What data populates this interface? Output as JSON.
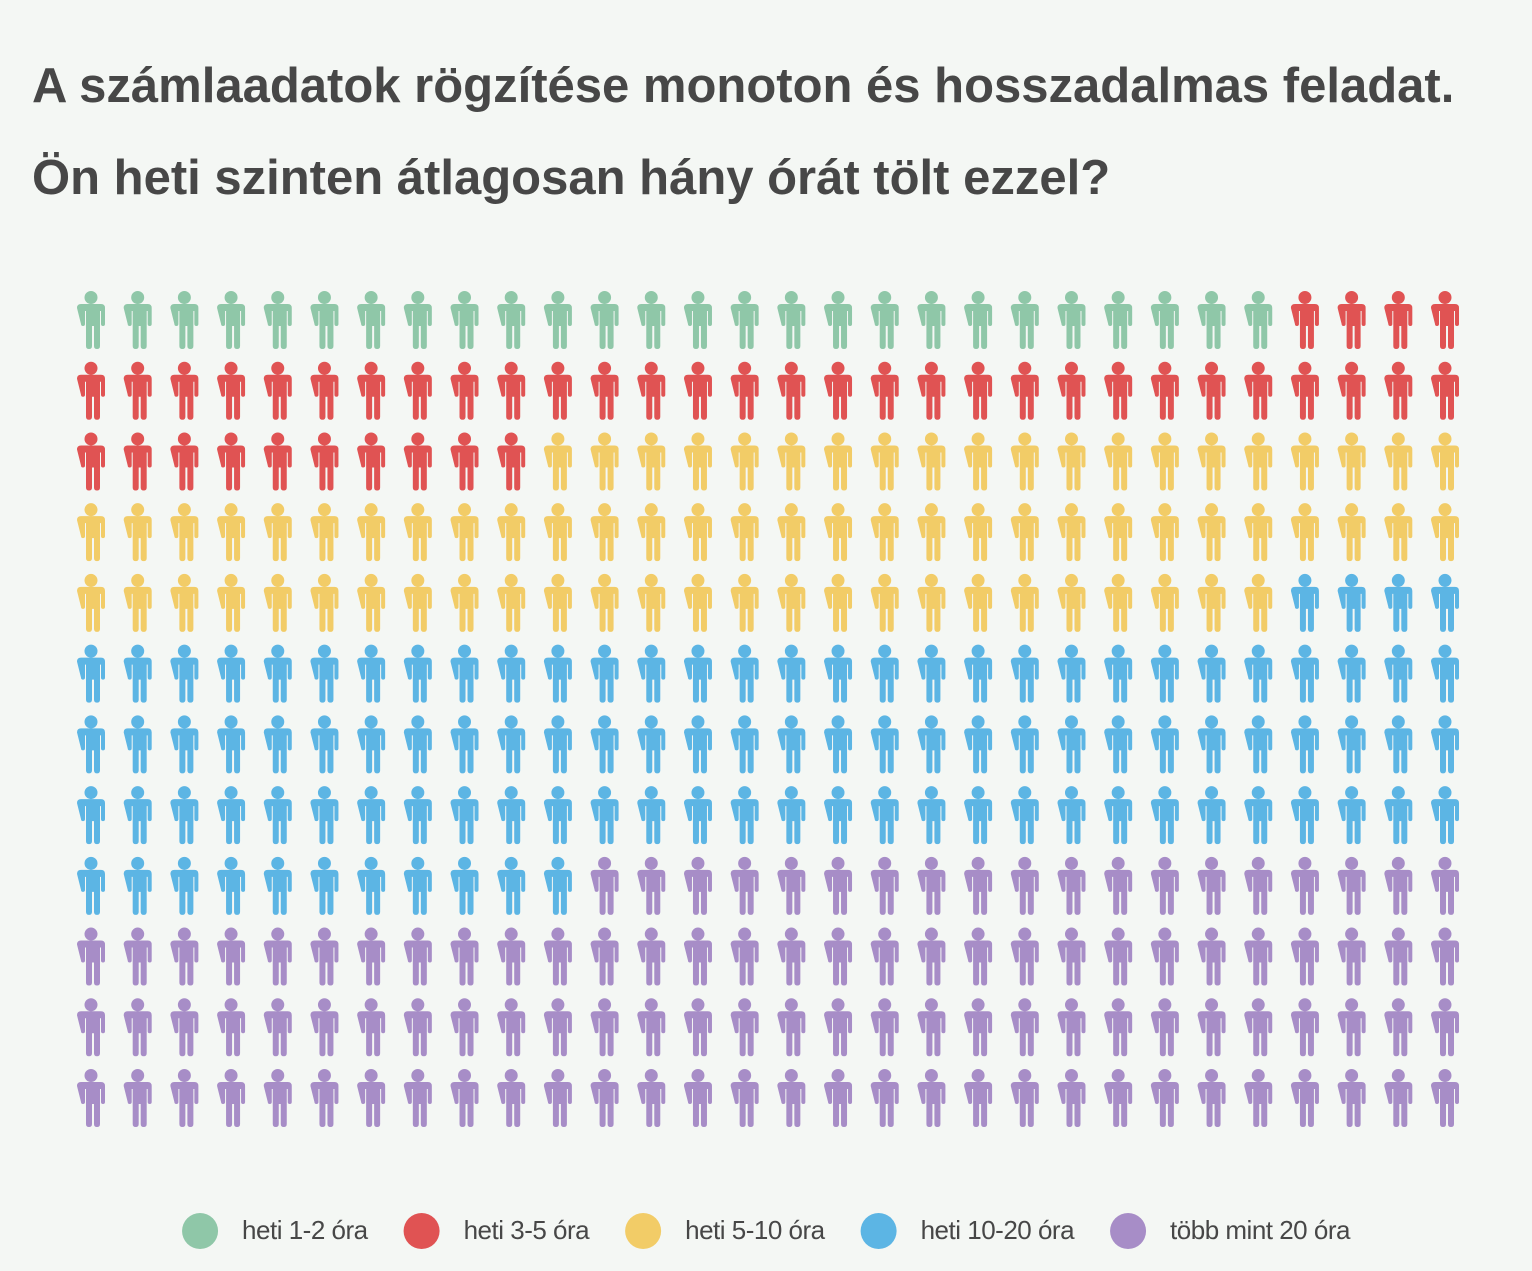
{
  "chart_data": {
    "type": "pictogram",
    "title": "A számlaadatok rögzítése monoton és hosszadalmas feladat. Ön heti szinten átlagosan hány órát tölt ezzel?",
    "series": [
      {
        "name": "heti 1-2 óra",
        "color": "#8fc7a8",
        "values": [
          26
        ]
      },
      {
        "name": "heti 3-5 óra",
        "color": "#e05353",
        "values": [
          44
        ]
      },
      {
        "name": "heti 5-10 óra",
        "color": "#f2cc67",
        "values": [
          76
        ]
      },
      {
        "name": "heti 10-20 óra",
        "color": "#5cb5e4",
        "values": [
          105
        ]
      },
      {
        "name": "több mint 20 óra",
        "color": "#a78dc7",
        "values": [
          109
        ]
      }
    ],
    "legend": "bottom"
  }
}
